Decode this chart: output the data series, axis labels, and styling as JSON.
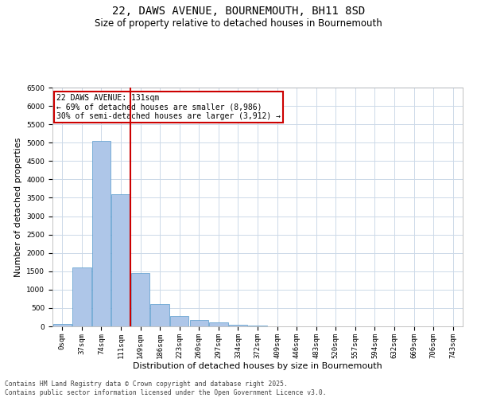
{
  "title_line1": "22, DAWS AVENUE, BOURNEMOUTH, BH11 8SD",
  "title_line2": "Size of property relative to detached houses in Bournemouth",
  "xlabel": "Distribution of detached houses by size in Bournemouth",
  "ylabel": "Number of detached properties",
  "bar_color": "#aec6e8",
  "bar_edge_color": "#5599cc",
  "vline_color": "#cc0000",
  "categories": [
    "0sqm",
    "37sqm",
    "74sqm",
    "111sqm",
    "149sqm",
    "186sqm",
    "223sqm",
    "260sqm",
    "297sqm",
    "334sqm",
    "372sqm",
    "409sqm",
    "446sqm",
    "483sqm",
    "520sqm",
    "557sqm",
    "594sqm",
    "632sqm",
    "669sqm",
    "706sqm",
    "743sqm"
  ],
  "values": [
    75,
    1600,
    5050,
    3600,
    1450,
    600,
    290,
    170,
    100,
    50,
    20,
    10,
    5,
    3,
    2,
    1,
    1,
    0,
    0,
    0,
    0
  ],
  "ylim": [
    0,
    6500
  ],
  "yticks": [
    0,
    500,
    1000,
    1500,
    2000,
    2500,
    3000,
    3500,
    4000,
    4500,
    5000,
    5500,
    6000,
    6500
  ],
  "annotation_text": "22 DAWS AVENUE: 131sqm\n← 69% of detached houses are smaller (8,986)\n30% of semi-detached houses are larger (3,912) →",
  "annotation_box_color": "#ffffff",
  "annotation_box_edge": "#cc0000",
  "footer_line1": "Contains HM Land Registry data © Crown copyright and database right 2025.",
  "footer_line2": "Contains public sector information licensed under the Open Government Licence v3.0.",
  "bg_color": "#ffffff",
  "grid_color": "#ccd9e8",
  "title_fontsize": 10,
  "subtitle_fontsize": 8.5,
  "tick_fontsize": 6.5,
  "label_fontsize": 8,
  "footer_fontsize": 5.8
}
